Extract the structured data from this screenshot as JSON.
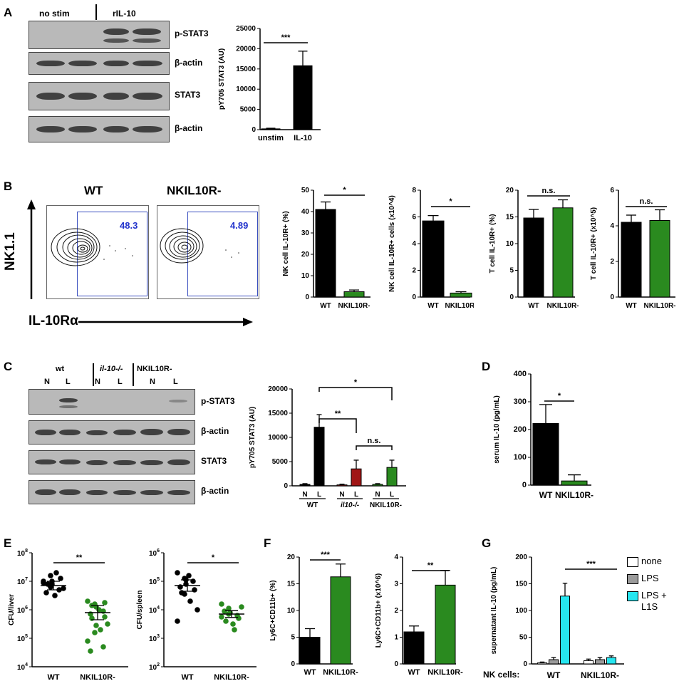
{
  "panel_labels": {
    "A": "A",
    "B": "B",
    "C": "C",
    "D": "D",
    "E": "E",
    "F": "F",
    "G": "G"
  },
  "colors": {
    "black": "#000000",
    "green": "#2a8a1f",
    "red": "#a01515",
    "gray": "#9b9b9b",
    "cyan": "#26e6f0",
    "gate": "#3a4fbf"
  },
  "panelA": {
    "blot_headers": [
      "no stim",
      "rIL-10"
    ],
    "blot_rows": [
      "p-STAT3",
      "β-actin",
      "STAT3",
      "β-actin"
    ]
  },
  "panelB": {
    "flow_titles": [
      "WT",
      "NKIL10R-"
    ],
    "gate_values": [
      "48.3",
      "4.89"
    ],
    "y_axis": "NK1.1",
    "x_axis": "IL-10Rα"
  },
  "panelC": {
    "group_headers": [
      "wt",
      "il-10-/-",
      "NKIL10R-"
    ],
    "lanes": [
      "N",
      "L",
      "N",
      "L",
      "N",
      "L"
    ],
    "blot_rows": [
      "p-STAT3",
      "β-actin",
      "STAT3",
      "β-actin"
    ]
  },
  "panelE": {
    "scatter_ticks_liver": [
      "10^8",
      "10^7",
      "10^6",
      "10^5",
      "10^4"
    ],
    "scatter_ticks_spleen": [
      "10^6",
      "10^5",
      "10^4",
      "10^3",
      "10^2"
    ]
  },
  "panelG": {
    "legend": [
      "none",
      "LPS",
      "LPS + L1S"
    ],
    "row_label": "NK cells:"
  },
  "chart_data": [
    {
      "id": "A",
      "type": "bar",
      "categories": [
        "unstim",
        "IL-10"
      ],
      "values": [
        200,
        15800
      ],
      "errors": [
        150,
        3600
      ],
      "ylabel": "pY705 STAT3 (AU)",
      "ylim": [
        0,
        25000
      ],
      "yticks": [
        0,
        5000,
        10000,
        15000,
        20000,
        25000
      ],
      "significance": "***",
      "colors": [
        "#000000",
        "#000000"
      ]
    },
    {
      "id": "B1",
      "type": "bar",
      "categories": [
        "WT",
        "NKIL10R-"
      ],
      "values": [
        41,
        2.5
      ],
      "errors": [
        3.5,
        0.8
      ],
      "ylabel": "NK cell IL-10R+ (%)",
      "ylim": [
        0,
        50
      ],
      "yticks": [
        0,
        10,
        20,
        30,
        40,
        50
      ],
      "significance": "*",
      "colors": [
        "#000000",
        "#2a8a1f"
      ]
    },
    {
      "id": "B2",
      "type": "bar",
      "categories": [
        "WT",
        "NKIL10R-"
      ],
      "values": [
        5.7,
        0.3
      ],
      "errors": [
        0.4,
        0.1
      ],
      "ylabel": "NK cell IL-10R+ cells (x10^4)",
      "ylim": [
        0,
        8
      ],
      "yticks": [
        0,
        2,
        4,
        6,
        8
      ],
      "significance": "*",
      "colors": [
        "#000000",
        "#2a8a1f"
      ]
    },
    {
      "id": "B3",
      "type": "bar",
      "categories": [
        "WT",
        "NKIL10R-"
      ],
      "values": [
        14.8,
        16.7
      ],
      "errors": [
        1.6,
        1.5
      ],
      "ylabel": "T cell IL-10R+ (%)",
      "ylim": [
        0,
        20
      ],
      "yticks": [
        0,
        5,
        10,
        15,
        20
      ],
      "significance": "n.s.",
      "colors": [
        "#000000",
        "#2a8a1f"
      ]
    },
    {
      "id": "B4",
      "type": "bar",
      "categories": [
        "WT",
        "NKIL10R-"
      ],
      "values": [
        4.2,
        4.3
      ],
      "errors": [
        0.4,
        0.6
      ],
      "ylabel": "T cell IL-10R+ (x10^5)",
      "ylim": [
        0,
        6
      ],
      "yticks": [
        0,
        2,
        4,
        6
      ],
      "significance": "n.s.",
      "colors": [
        "#000000",
        "#2a8a1f"
      ]
    },
    {
      "id": "C",
      "type": "bar",
      "categories": [
        "N",
        "L",
        "N",
        "L",
        "N",
        "L"
      ],
      "groups": [
        "WT",
        "il10-/-",
        "NKIL10R-"
      ],
      "values": [
        300,
        12100,
        200,
        3500,
        300,
        3800
      ],
      "errors": [
        150,
        2600,
        150,
        1800,
        150,
        1500
      ],
      "ylabel": "pY705 STAT3 (AU)",
      "ylim": [
        0,
        20000
      ],
      "yticks": [
        0,
        5000,
        10000,
        15000,
        20000
      ],
      "significance": [
        "**",
        "*",
        "n.s."
      ],
      "colors": [
        "#000000",
        "#000000",
        "#a01515",
        "#a01515",
        "#2a8a1f",
        "#2a8a1f"
      ]
    },
    {
      "id": "D",
      "type": "bar",
      "categories": [
        "WT",
        "NKIL10R-"
      ],
      "values": [
        222,
        15
      ],
      "errors": [
        68,
        22
      ],
      "ylabel": "serum IL-10 (pg/mL)",
      "ylim": [
        0,
        400
      ],
      "yticks": [
        0,
        100,
        200,
        300,
        400
      ],
      "significance": "*",
      "colors": [
        "#000000",
        "#2a8a1f"
      ]
    },
    {
      "id": "E1",
      "type": "scatter",
      "categories": [
        "WT",
        "NKIL10R-"
      ],
      "ylabel": "CFU/liver",
      "ylim": [
        4,
        8
      ],
      "log": true,
      "significance": "**",
      "means": [
        6.85,
        5.9
      ],
      "sems": [
        0.15,
        0.25
      ],
      "points": [
        [
          7.0,
          7.2,
          6.9,
          6.7,
          7.1,
          6.6,
          6.9,
          6.5,
          7.3,
          6.75,
          6.95,
          6.8,
          7.0
        ],
        [
          6.3,
          6.2,
          6.1,
          5.95,
          6.25,
          5.85,
          5.7,
          6.0,
          5.3,
          5.5,
          4.9,
          5.2,
          5.45,
          4.7,
          5.75,
          4.55,
          6.15
        ]
      ],
      "colors": [
        "#000000",
        "#2a8a1f"
      ]
    },
    {
      "id": "E2",
      "type": "scatter",
      "categories": [
        "WT",
        "NKIL10R-"
      ],
      "ylabel": "CFU/spleen",
      "ylim": [
        2,
        6
      ],
      "log": true,
      "significance": "*",
      "means": [
        4.85,
        3.85
      ],
      "sems": [
        0.2,
        0.12
      ],
      "points": [
        [
          5.3,
          5.1,
          4.9,
          5.0,
          4.7,
          4.8,
          4.6,
          5.2,
          4.3,
          4.0,
          3.6,
          4.55,
          5.05
        ],
        [
          4.2,
          4.05,
          3.9,
          3.8,
          3.7,
          3.95,
          3.6,
          3.5,
          3.3,
          4.1,
          3.75,
          3.85
        ],
        "colors_unused"
      ],
      "colors": [
        "#000000",
        "#2a8a1f"
      ]
    },
    {
      "id": "F1",
      "type": "bar",
      "categories": [
        "WT",
        "NKIL10R-"
      ],
      "values": [
        5,
        16.3
      ],
      "errors": [
        1.6,
        2.4
      ],
      "ylabel": "Ly6C+CD11b+ (%)",
      "ylim": [
        0,
        20
      ],
      "yticks": [
        0,
        5,
        10,
        15,
        20
      ],
      "significance": "***",
      "colors": [
        "#000000",
        "#2a8a1f"
      ]
    },
    {
      "id": "F2",
      "type": "bar",
      "categories": [
        "WT",
        "NKIL10R-"
      ],
      "values": [
        1.2,
        2.95
      ],
      "errors": [
        0.22,
        0.55
      ],
      "ylabel": "Ly6C+CD11b+ (x10^6)",
      "ylim": [
        0,
        4
      ],
      "yticks": [
        0,
        1,
        2,
        3,
        4
      ],
      "significance": "**",
      "colors": [
        "#000000",
        "#2a8a1f"
      ]
    },
    {
      "id": "G",
      "type": "bar",
      "categories": [
        "none",
        "LPS",
        "LPS + L1S",
        "none",
        "LPS",
        "LPS + L1S"
      ],
      "groups": [
        "WT",
        "NKIL10R-"
      ],
      "values": [
        2,
        8,
        127,
        6,
        8,
        12
      ],
      "errors": [
        1.5,
        4,
        24,
        3,
        4,
        3
      ],
      "ylabel": "supernatant IL-10 (pg/mL)",
      "ylim": [
        0,
        200
      ],
      "yticks": [
        0,
        50,
        100,
        150,
        200
      ],
      "significance": "***",
      "colors": [
        "#ffffff",
        "#9b9b9b",
        "#26e6f0",
        "#ffffff",
        "#9b9b9b",
        "#26e6f0"
      ]
    }
  ]
}
